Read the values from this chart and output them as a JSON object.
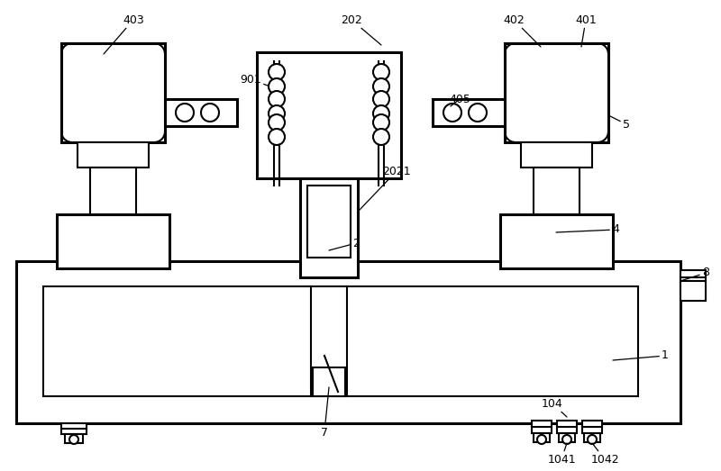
{
  "bg_color": "#ffffff",
  "lc": "#000000",
  "lw": 1.5,
  "lw2": 2.2
}
